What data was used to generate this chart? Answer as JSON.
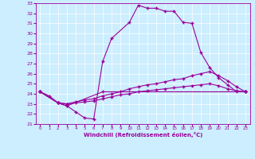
{
  "xlabel": "Windchill (Refroidissement éolien,°C)",
  "background_color": "#cceeff",
  "line_color": "#990099",
  "xlim": [
    -0.5,
    23.5
  ],
  "ylim": [
    21,
    33
  ],
  "yticks": [
    21,
    22,
    23,
    24,
    25,
    26,
    27,
    28,
    29,
    30,
    31,
    32,
    33
  ],
  "xticks": [
    0,
    1,
    2,
    3,
    4,
    5,
    6,
    7,
    8,
    9,
    10,
    11,
    12,
    13,
    14,
    15,
    16,
    17,
    18,
    19,
    20,
    21,
    22,
    23
  ],
  "series": [
    {
      "x": [
        0,
        1,
        2,
        3,
        4,
        5,
        6,
        7,
        8,
        10,
        11,
        12,
        13,
        14,
        15,
        16,
        17,
        18,
        19,
        20,
        21,
        22,
        23
      ],
      "y": [
        24.2,
        23.8,
        23.1,
        22.8,
        22.2,
        21.6,
        21.5,
        27.2,
        29.5,
        31.1,
        32.8,
        32.5,
        32.5,
        32.2,
        32.2,
        31.1,
        31.0,
        28.1,
        26.6,
        25.6,
        24.9,
        24.2,
        24.2
      ]
    },
    {
      "x": [
        0,
        2,
        3,
        7,
        23
      ],
      "y": [
        24.2,
        23.1,
        22.8,
        24.2,
        24.2
      ]
    },
    {
      "x": [
        0,
        2,
        3,
        4,
        5,
        6,
        7,
        8,
        9,
        10,
        11,
        12,
        13,
        14,
        15,
        16,
        17,
        18,
        19,
        20,
        21,
        22,
        23
      ],
      "y": [
        24.2,
        23.1,
        23.0,
        23.2,
        23.4,
        23.5,
        23.8,
        24.0,
        24.2,
        24.5,
        24.7,
        24.9,
        25.0,
        25.2,
        25.4,
        25.5,
        25.8,
        26.0,
        26.2,
        25.8,
        25.3,
        24.7,
        24.2
      ]
    },
    {
      "x": [
        0,
        2,
        3,
        4,
        5,
        6,
        7,
        8,
        9,
        10,
        11,
        12,
        13,
        14,
        15,
        16,
        17,
        18,
        19,
        20,
        21,
        22,
        23
      ],
      "y": [
        24.2,
        23.1,
        23.0,
        23.1,
        23.2,
        23.3,
        23.5,
        23.7,
        23.9,
        24.0,
        24.2,
        24.3,
        24.4,
        24.5,
        24.6,
        24.7,
        24.8,
        24.9,
        25.0,
        24.8,
        24.5,
        24.3,
        24.2
      ]
    }
  ]
}
